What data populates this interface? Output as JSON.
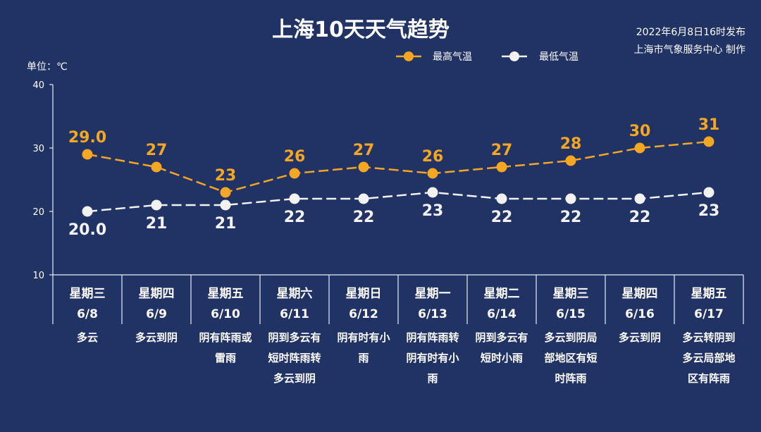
{
  "header": {
    "title": "上海10天天气趋势",
    "publish": "2022年6月8日16时发布",
    "credit": "上海市气象服务中心 制作"
  },
  "unit_label": "单位：℃",
  "colors": {
    "background": "#213264",
    "high": "#f5a623",
    "low": "#f2f2f2",
    "axis": "#e8ecf5"
  },
  "chart_data": {
    "type": "line",
    "ylim": [
      10,
      40
    ],
    "yticks": [
      10,
      20,
      30,
      40
    ],
    "grid": false,
    "legend_position": "top-right",
    "categories": [
      "6/8",
      "6/9",
      "6/10",
      "6/11",
      "6/12",
      "6/13",
      "6/14",
      "6/15",
      "6/16",
      "6/17"
    ],
    "weekdays": [
      "星期三",
      "星期四",
      "星期五",
      "星期六",
      "星期日",
      "星期一",
      "星期二",
      "星期三",
      "星期四",
      "星期五"
    ],
    "conditions": [
      [
        "多云"
      ],
      [
        "多云到阴"
      ],
      [
        "阴有阵雨或",
        "雷雨"
      ],
      [
        "阴到多云有",
        "短时阵雨转",
        "多云到阴"
      ],
      [
        "阴有时有小",
        "雨"
      ],
      [
        "阴有阵雨转",
        "阴有时有小",
        "雨"
      ],
      [
        "阴到多云有",
        "短时小雨"
      ],
      [
        "多云到阴局",
        "部地区有短",
        "时阵雨"
      ],
      [
        "多云到阴"
      ],
      [
        "多云转阴到",
        "多云局部地",
        "区有阵雨"
      ]
    ],
    "series": [
      {
        "name": "最高气温",
        "values": [
          29.0,
          27,
          23,
          26,
          27,
          26,
          27,
          28,
          30,
          31
        ],
        "labels": [
          "29.0",
          "27",
          "23",
          "26",
          "27",
          "26",
          "27",
          "28",
          "30",
          "31"
        ],
        "color": "#f5a623"
      },
      {
        "name": "最低气温",
        "values": [
          20.0,
          21,
          21,
          22,
          22,
          23,
          22,
          22,
          22,
          23
        ],
        "labels": [
          "20.0",
          "21",
          "21",
          "22",
          "22",
          "23",
          "22",
          "22",
          "22",
          "23"
        ],
        "color": "#f2f2f2"
      }
    ]
  }
}
